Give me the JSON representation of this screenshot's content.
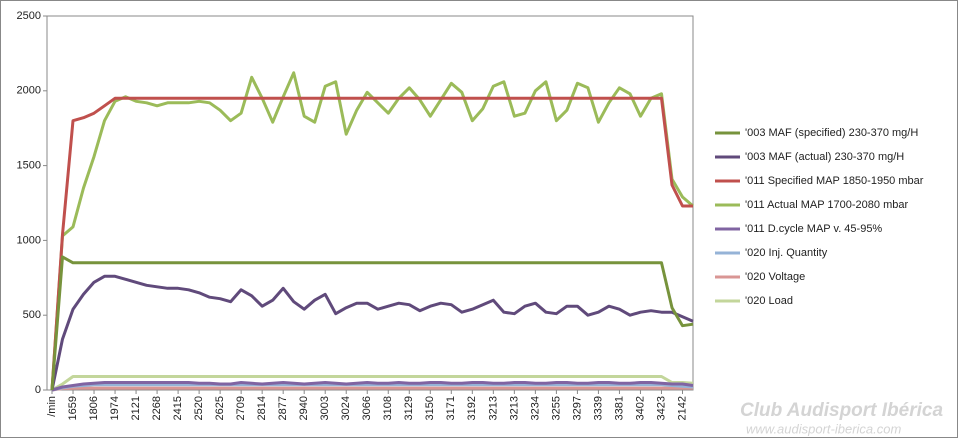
{
  "chart_data": {
    "type": "line",
    "categories": [
      "/min",
      null,
      "1659",
      null,
      "1806",
      null,
      "1974",
      null,
      "2121",
      null,
      "2268",
      null,
      "2415",
      null,
      "2520",
      null,
      "2625",
      null,
      "2709",
      null,
      "2814",
      null,
      "2877",
      null,
      "2940",
      null,
      "3003",
      null,
      "3024",
      null,
      "3066",
      null,
      "3108",
      null,
      "3129",
      null,
      "3150",
      null,
      "3171",
      null,
      "3192",
      null,
      "3213",
      null,
      "3213",
      null,
      "3234",
      null,
      "3255",
      null,
      "3297",
      null,
      "3339",
      null,
      "3381",
      null,
      "3402",
      null,
      "3423",
      null,
      "2142",
      null
    ],
    "ylim": [
      0,
      2500
    ],
    "yticks": [
      0,
      500,
      1000,
      1500,
      2000,
      2500
    ],
    "grid": false,
    "legend": "right",
    "series": [
      {
        "name": "'003 MAF (specified) 230-370 mg/H",
        "color": "#77933c",
        "values": [
          0,
          890,
          850,
          850,
          850,
          850,
          850,
          850,
          850,
          850,
          850,
          850,
          850,
          850,
          850,
          850,
          850,
          850,
          850,
          850,
          850,
          850,
          850,
          850,
          850,
          850,
          850,
          850,
          850,
          850,
          850,
          850,
          850,
          850,
          850,
          850,
          850,
          850,
          850,
          850,
          850,
          850,
          850,
          850,
          850,
          850,
          850,
          850,
          850,
          850,
          850,
          850,
          850,
          850,
          850,
          850,
          850,
          850,
          850,
          550,
          430,
          440
        ]
      },
      {
        "name": "'003 MAF (actual)  230-370 mg/H",
        "color": "#604a7b",
        "values": [
          0,
          340,
          540,
          640,
          720,
          760,
          760,
          740,
          720,
          700,
          690,
          680,
          680,
          670,
          650,
          620,
          610,
          590,
          670,
          630,
          560,
          600,
          680,
          590,
          540,
          600,
          640,
          510,
          550,
          580,
          580,
          540,
          560,
          580,
          570,
          530,
          560,
          580,
          570,
          520,
          540,
          570,
          600,
          520,
          510,
          560,
          580,
          520,
          510,
          560,
          560,
          500,
          520,
          560,
          540,
          500,
          520,
          530,
          520,
          520,
          490,
          460
        ]
      },
      {
        "name": "'011 Specified MAP 1850-1950 mbar",
        "color": "#c0504d",
        "values": [
          0,
          1040,
          1800,
          1820,
          1850,
          1900,
          1950,
          1950,
          1950,
          1950,
          1950,
          1950,
          1950,
          1950,
          1950,
          1950,
          1950,
          1950,
          1950,
          1950,
          1950,
          1950,
          1950,
          1950,
          1950,
          1950,
          1950,
          1950,
          1950,
          1950,
          1950,
          1950,
          1950,
          1950,
          1950,
          1950,
          1950,
          1950,
          1950,
          1950,
          1950,
          1950,
          1950,
          1950,
          1950,
          1950,
          1950,
          1950,
          1950,
          1950,
          1950,
          1950,
          1950,
          1950,
          1950,
          1950,
          1950,
          1950,
          1950,
          1370,
          1230,
          1230
        ]
      },
      {
        "name": "'011 Actual MAP 1700-2080 mbar",
        "color": "#9bbb59",
        "values": [
          0,
          1030,
          1090,
          1350,
          1560,
          1800,
          1930,
          1960,
          1930,
          1920,
          1900,
          1920,
          1920,
          1920,
          1930,
          1920,
          1870,
          1800,
          1850,
          2090,
          1950,
          1790,
          1960,
          2120,
          1830,
          1790,
          2030,
          2060,
          1710,
          1870,
          1990,
          1920,
          1850,
          1950,
          2020,
          1940,
          1830,
          1940,
          2050,
          1990,
          1800,
          1880,
          2030,
          2060,
          1830,
          1850,
          2000,
          2060,
          1800,
          1870,
          2050,
          2020,
          1790,
          1920,
          2020,
          1980,
          1830,
          1950,
          1980,
          1410,
          1290,
          1230
        ]
      },
      {
        "name": "'011 D.cycle MAP v. 45-95%",
        "color": "#8064a2",
        "values": [
          0,
          20,
          30,
          40,
          45,
          50,
          50,
          50,
          50,
          50,
          50,
          50,
          50,
          50,
          45,
          45,
          40,
          40,
          50,
          45,
          40,
          45,
          50,
          45,
          40,
          45,
          50,
          45,
          40,
          45,
          50,
          45,
          45,
          50,
          45,
          45,
          50,
          50,
          45,
          45,
          50,
          50,
          45,
          45,
          50,
          50,
          45,
          45,
          50,
          50,
          45,
          45,
          50,
          50,
          45,
          45,
          50,
          50,
          45,
          40,
          40,
          30
        ]
      },
      {
        "name": "'020 Inj. Quantity",
        "color": "#95b3d7",
        "values": [
          0,
          15,
          25,
          30,
          35,
          35,
          35,
          35,
          35,
          35,
          35,
          35,
          35,
          35,
          35,
          35,
          35,
          35,
          35,
          35,
          35,
          35,
          35,
          35,
          35,
          35,
          35,
          35,
          35,
          35,
          35,
          35,
          35,
          35,
          35,
          35,
          35,
          35,
          35,
          35,
          35,
          35,
          35,
          35,
          35,
          35,
          35,
          35,
          35,
          35,
          35,
          35,
          35,
          35,
          35,
          35,
          35,
          35,
          35,
          30,
          25,
          20
        ]
      },
      {
        "name": "'020 Voltage",
        "color": "#d99694",
        "values": [
          0,
          10,
          12,
          13,
          13,
          13,
          13,
          13,
          13,
          13,
          13,
          13,
          13,
          13,
          13,
          13,
          13,
          13,
          13,
          13,
          13,
          13,
          13,
          13,
          13,
          13,
          13,
          13,
          13,
          13,
          13,
          13,
          13,
          13,
          13,
          13,
          13,
          13,
          13,
          13,
          13,
          13,
          13,
          13,
          13,
          13,
          13,
          13,
          13,
          13,
          13,
          13,
          13,
          13,
          13,
          13,
          13,
          13,
          13,
          13,
          13,
          13
        ]
      },
      {
        "name": "'020 Load",
        "color": "#c3d69b",
        "values": [
          0,
          40,
          90,
          90,
          90,
          90,
          90,
          90,
          90,
          90,
          90,
          90,
          90,
          90,
          90,
          90,
          90,
          90,
          90,
          90,
          90,
          90,
          90,
          90,
          90,
          90,
          90,
          90,
          90,
          90,
          90,
          90,
          90,
          90,
          90,
          90,
          90,
          90,
          90,
          90,
          90,
          90,
          90,
          90,
          90,
          90,
          90,
          90,
          90,
          90,
          90,
          90,
          90,
          90,
          90,
          90,
          90,
          90,
          90,
          50,
          50,
          45
        ]
      }
    ]
  },
  "watermark": {
    "title": "Club Audisport Ibérica",
    "url": "www.audisport-iberica.com"
  }
}
